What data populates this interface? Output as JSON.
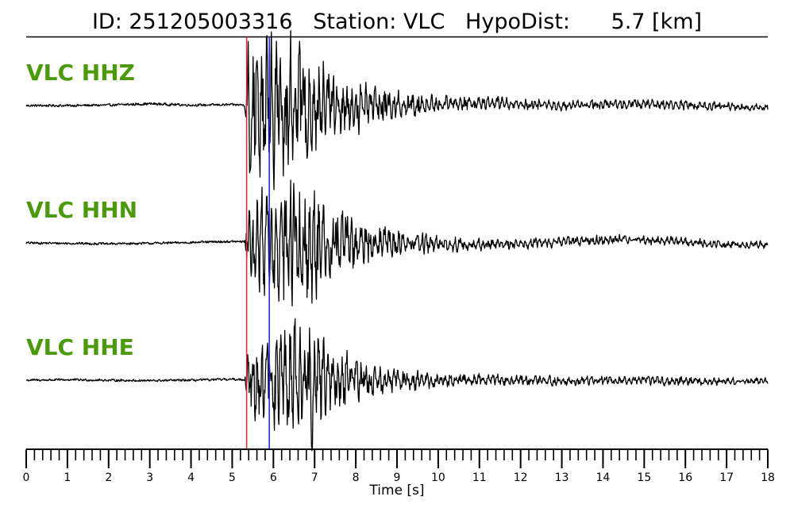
{
  "header": {
    "title": "ID: 251205003316   Station: VLC   HypoDist:      5.7 [km]"
  },
  "colors": {
    "label": "#4a9a0a",
    "p_pick": "#e8202a",
    "s_pick": "#1a1adf",
    "trace": "#000000"
  },
  "chart_data": {
    "type": "line",
    "title": "ID: 251205003316   Station: VLC   HypoDist:      5.7 [km]",
    "xlabel": "Time [s]",
    "ylabel": "",
    "xlim": [
      0,
      18
    ],
    "x_ticks": [
      "0",
      "1",
      "2",
      "3",
      "4",
      "5",
      "6",
      "7",
      "8",
      "9",
      "10",
      "11",
      "12",
      "13",
      "14",
      "15",
      "16",
      "17",
      "18"
    ],
    "minor_tick_step": 0.2,
    "grid": false,
    "picks": [
      {
        "phase": "P",
        "time": 5.35,
        "color": "#e8202a"
      },
      {
        "phase": "S",
        "time": 5.9,
        "color": "#1a1adf"
      }
    ],
    "series": [
      {
        "name": "VLC HHZ",
        "envelope": {
          "time": [
            0,
            2,
            3,
            4.5,
            5.3,
            5.35,
            5.4,
            5.8,
            6.3,
            6.8,
            7.3,
            7.8,
            8.3,
            9,
            10,
            11,
            12,
            13,
            14,
            15,
            16,
            17,
            18
          ],
          "amplitude": [
            0.03,
            0.03,
            0.035,
            0.03,
            0.03,
            0.9,
            0.95,
            0.9,
            1.0,
            0.7,
            0.55,
            0.4,
            0.3,
            0.2,
            0.12,
            0.09,
            0.08,
            0.07,
            0.07,
            0.07,
            0.07,
            0.06,
            0.05
          ]
        },
        "baseline": {
          "time": [
            0,
            1,
            2,
            3,
            4,
            5,
            6,
            8,
            10,
            11,
            12,
            13,
            14,
            15,
            16,
            17,
            18
          ],
          "offset": [
            0,
            0,
            0.02,
            0.08,
            0.02,
            0.04,
            0,
            -0.02,
            0.1,
            0.12,
            0.08,
            0,
            0.05,
            0.08,
            0.02,
            -0.05,
            -0.1
          ]
        }
      },
      {
        "name": "VLC HHN",
        "envelope": {
          "time": [
            0,
            2,
            3,
            4.5,
            5.3,
            5.35,
            5.4,
            5.8,
            6.3,
            6.8,
            7.3,
            7.8,
            8.3,
            9,
            10,
            11,
            12,
            13,
            14,
            15,
            16,
            17,
            18
          ],
          "amplitude": [
            0.03,
            0.03,
            0.03,
            0.03,
            0.03,
            0.7,
            0.65,
            0.7,
            0.9,
            1.0,
            0.55,
            0.4,
            0.28,
            0.18,
            0.12,
            0.08,
            0.07,
            0.07,
            0.07,
            0.07,
            0.06,
            0.05,
            0.05
          ]
        },
        "baseline": {
          "time": [
            0,
            1,
            2,
            3,
            4,
            5,
            6,
            8,
            10,
            11,
            12,
            13,
            14,
            15,
            16,
            17,
            18
          ],
          "offset": [
            0,
            -0.02,
            -0.04,
            -0.02,
            0.02,
            0.06,
            0.02,
            0,
            -0.05,
            -0.08,
            -0.04,
            0.05,
            0.12,
            0.14,
            0.05,
            -0.08,
            -0.1
          ]
        }
      },
      {
        "name": "VLC HHE",
        "envelope": {
          "time": [
            0,
            2,
            3,
            4.5,
            5.3,
            5.35,
            5.4,
            5.8,
            6.3,
            6.8,
            7.3,
            7.8,
            8.3,
            9,
            10,
            11,
            12,
            13,
            14,
            15,
            16,
            17,
            18
          ],
          "amplitude": [
            0.03,
            0.03,
            0.03,
            0.03,
            0.03,
            0.55,
            0.5,
            0.55,
            0.7,
            0.9,
            0.5,
            0.35,
            0.25,
            0.15,
            0.1,
            0.08,
            0.07,
            0.06,
            0.06,
            0.06,
            0.06,
            0.05,
            0.05
          ]
        },
        "baseline": {
          "time": [
            0,
            1,
            2,
            3,
            4,
            5,
            6,
            8,
            10,
            11,
            12,
            13,
            14,
            15,
            16,
            17,
            18
          ],
          "offset": [
            0,
            0.02,
            0,
            -0.02,
            0,
            0.04,
            0,
            0,
            -0.02,
            0.02,
            0,
            -0.04,
            -0.02,
            0,
            -0.04,
            -0.06,
            -0.02
          ]
        }
      }
    ]
  }
}
